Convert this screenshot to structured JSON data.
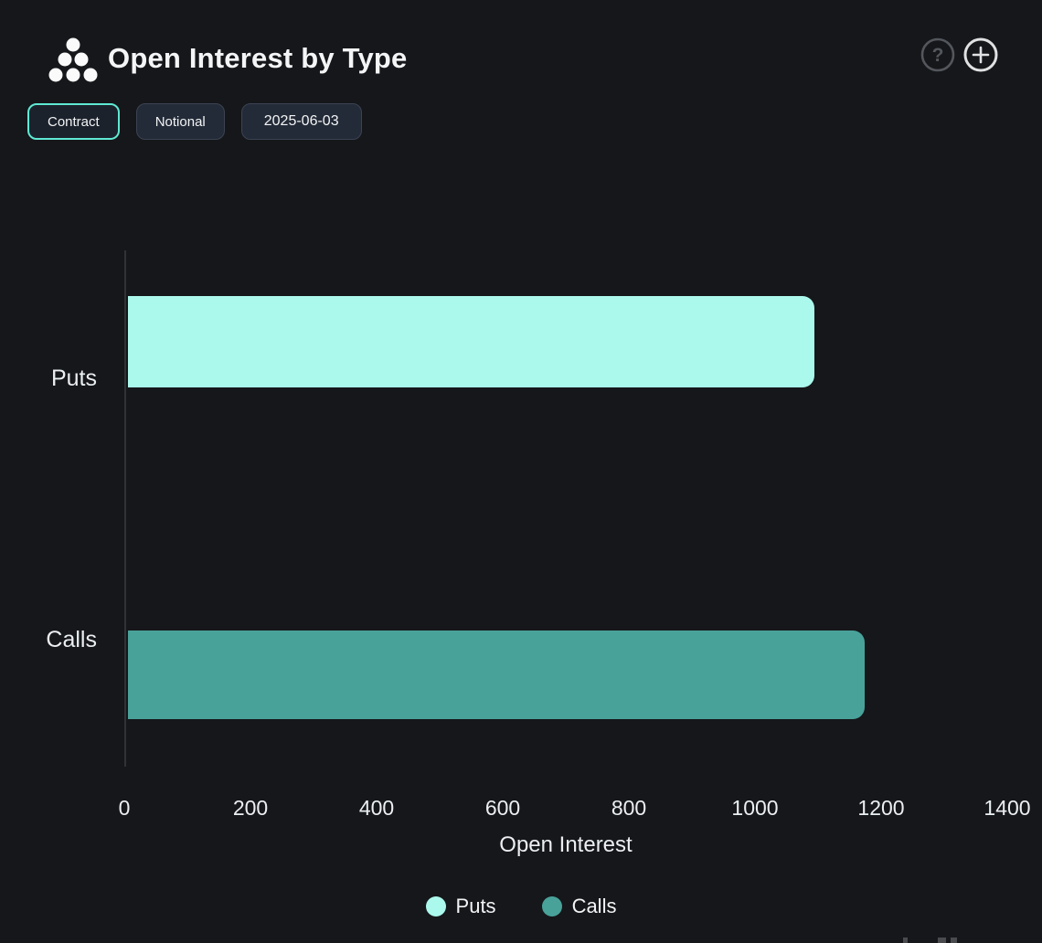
{
  "header": {
    "title": "Open Interest by Type",
    "logo_icon": "dot-pyramid-logo",
    "help_icon": "question-mark-circle",
    "add_icon": "plus-circle"
  },
  "toolbar": {
    "buttons": [
      {
        "label": "Contract",
        "selected": true
      },
      {
        "label": "Notional",
        "selected": false
      },
      {
        "label": "2025-06-03",
        "selected": false
      }
    ]
  },
  "chart_data": {
    "type": "bar",
    "orientation": "horizontal",
    "title": "Open Interest by Type",
    "categories": [
      "Puts",
      "Calls"
    ],
    "series": [
      {
        "name": "Puts",
        "value": 1090,
        "color": "#abf8ec"
      },
      {
        "name": "Calls",
        "value": 1170,
        "color": "#49a29a"
      }
    ],
    "values": [
      1090,
      1170
    ],
    "xlabel": "Open Interest",
    "ylabel": "",
    "xlim": [
      0,
      1400
    ],
    "xticks": [
      0,
      200,
      400,
      600,
      800,
      1000,
      1200,
      1400
    ],
    "grid": false,
    "legend_position": "bottom",
    "legend": [
      {
        "label": "Puts",
        "color": "#abf8ec"
      },
      {
        "label": "Calls",
        "color": "#49a29a"
      }
    ]
  },
  "colors": {
    "background": "#15171a",
    "axis_line": "#2f3237",
    "text": "#eceff1",
    "accent": "#5fe9d3",
    "puts": "#abf8ec",
    "calls": "#49a29a"
  }
}
